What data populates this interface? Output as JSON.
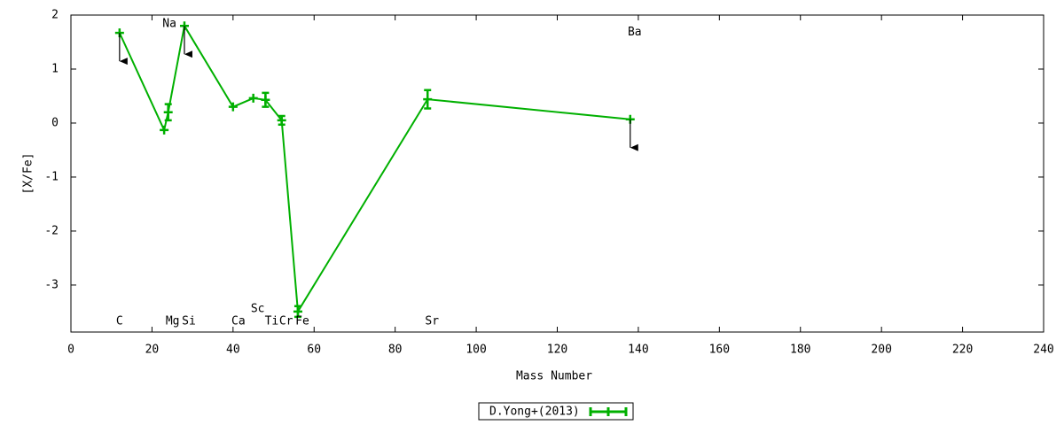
{
  "chart_data": {
    "type": "line",
    "xlabel": "Mass Number",
    "ylabel": "[X/Fe]",
    "xlim": [
      0,
      240
    ],
    "xticks": [
      0,
      20,
      40,
      60,
      80,
      100,
      120,
      140,
      160,
      180,
      200,
      220,
      240
    ],
    "ylim": [
      -3.87,
      2
    ],
    "yticks": [
      -3,
      -2,
      -1,
      0,
      1,
      2
    ],
    "x": [
      12,
      23,
      24,
      28,
      40,
      45,
      48,
      52,
      56,
      88,
      138
    ],
    "labels": [
      "C",
      "Na",
      "Mg",
      "Si",
      "Ca",
      "Sc",
      "Ti",
      "Cr",
      "Fe",
      "Sr",
      "Ba"
    ],
    "series": [
      {
        "name": "D.Yong+(2013)",
        "color": "#00b000",
        "values": [
          1.67,
          -0.13,
          0.2,
          1.8,
          0.3,
          0.46,
          0.43,
          0.05,
          -3.49,
          0.44,
          0.07
        ],
        "errors": [
          null,
          null,
          0.15,
          null,
          null,
          null,
          0.13,
          0.08,
          0.1,
          0.17,
          null
        ],
        "upper_limit": [
          true,
          false,
          false,
          true,
          false,
          false,
          false,
          false,
          false,
          false,
          true
        ]
      }
    ],
    "legend": "bottom"
  }
}
